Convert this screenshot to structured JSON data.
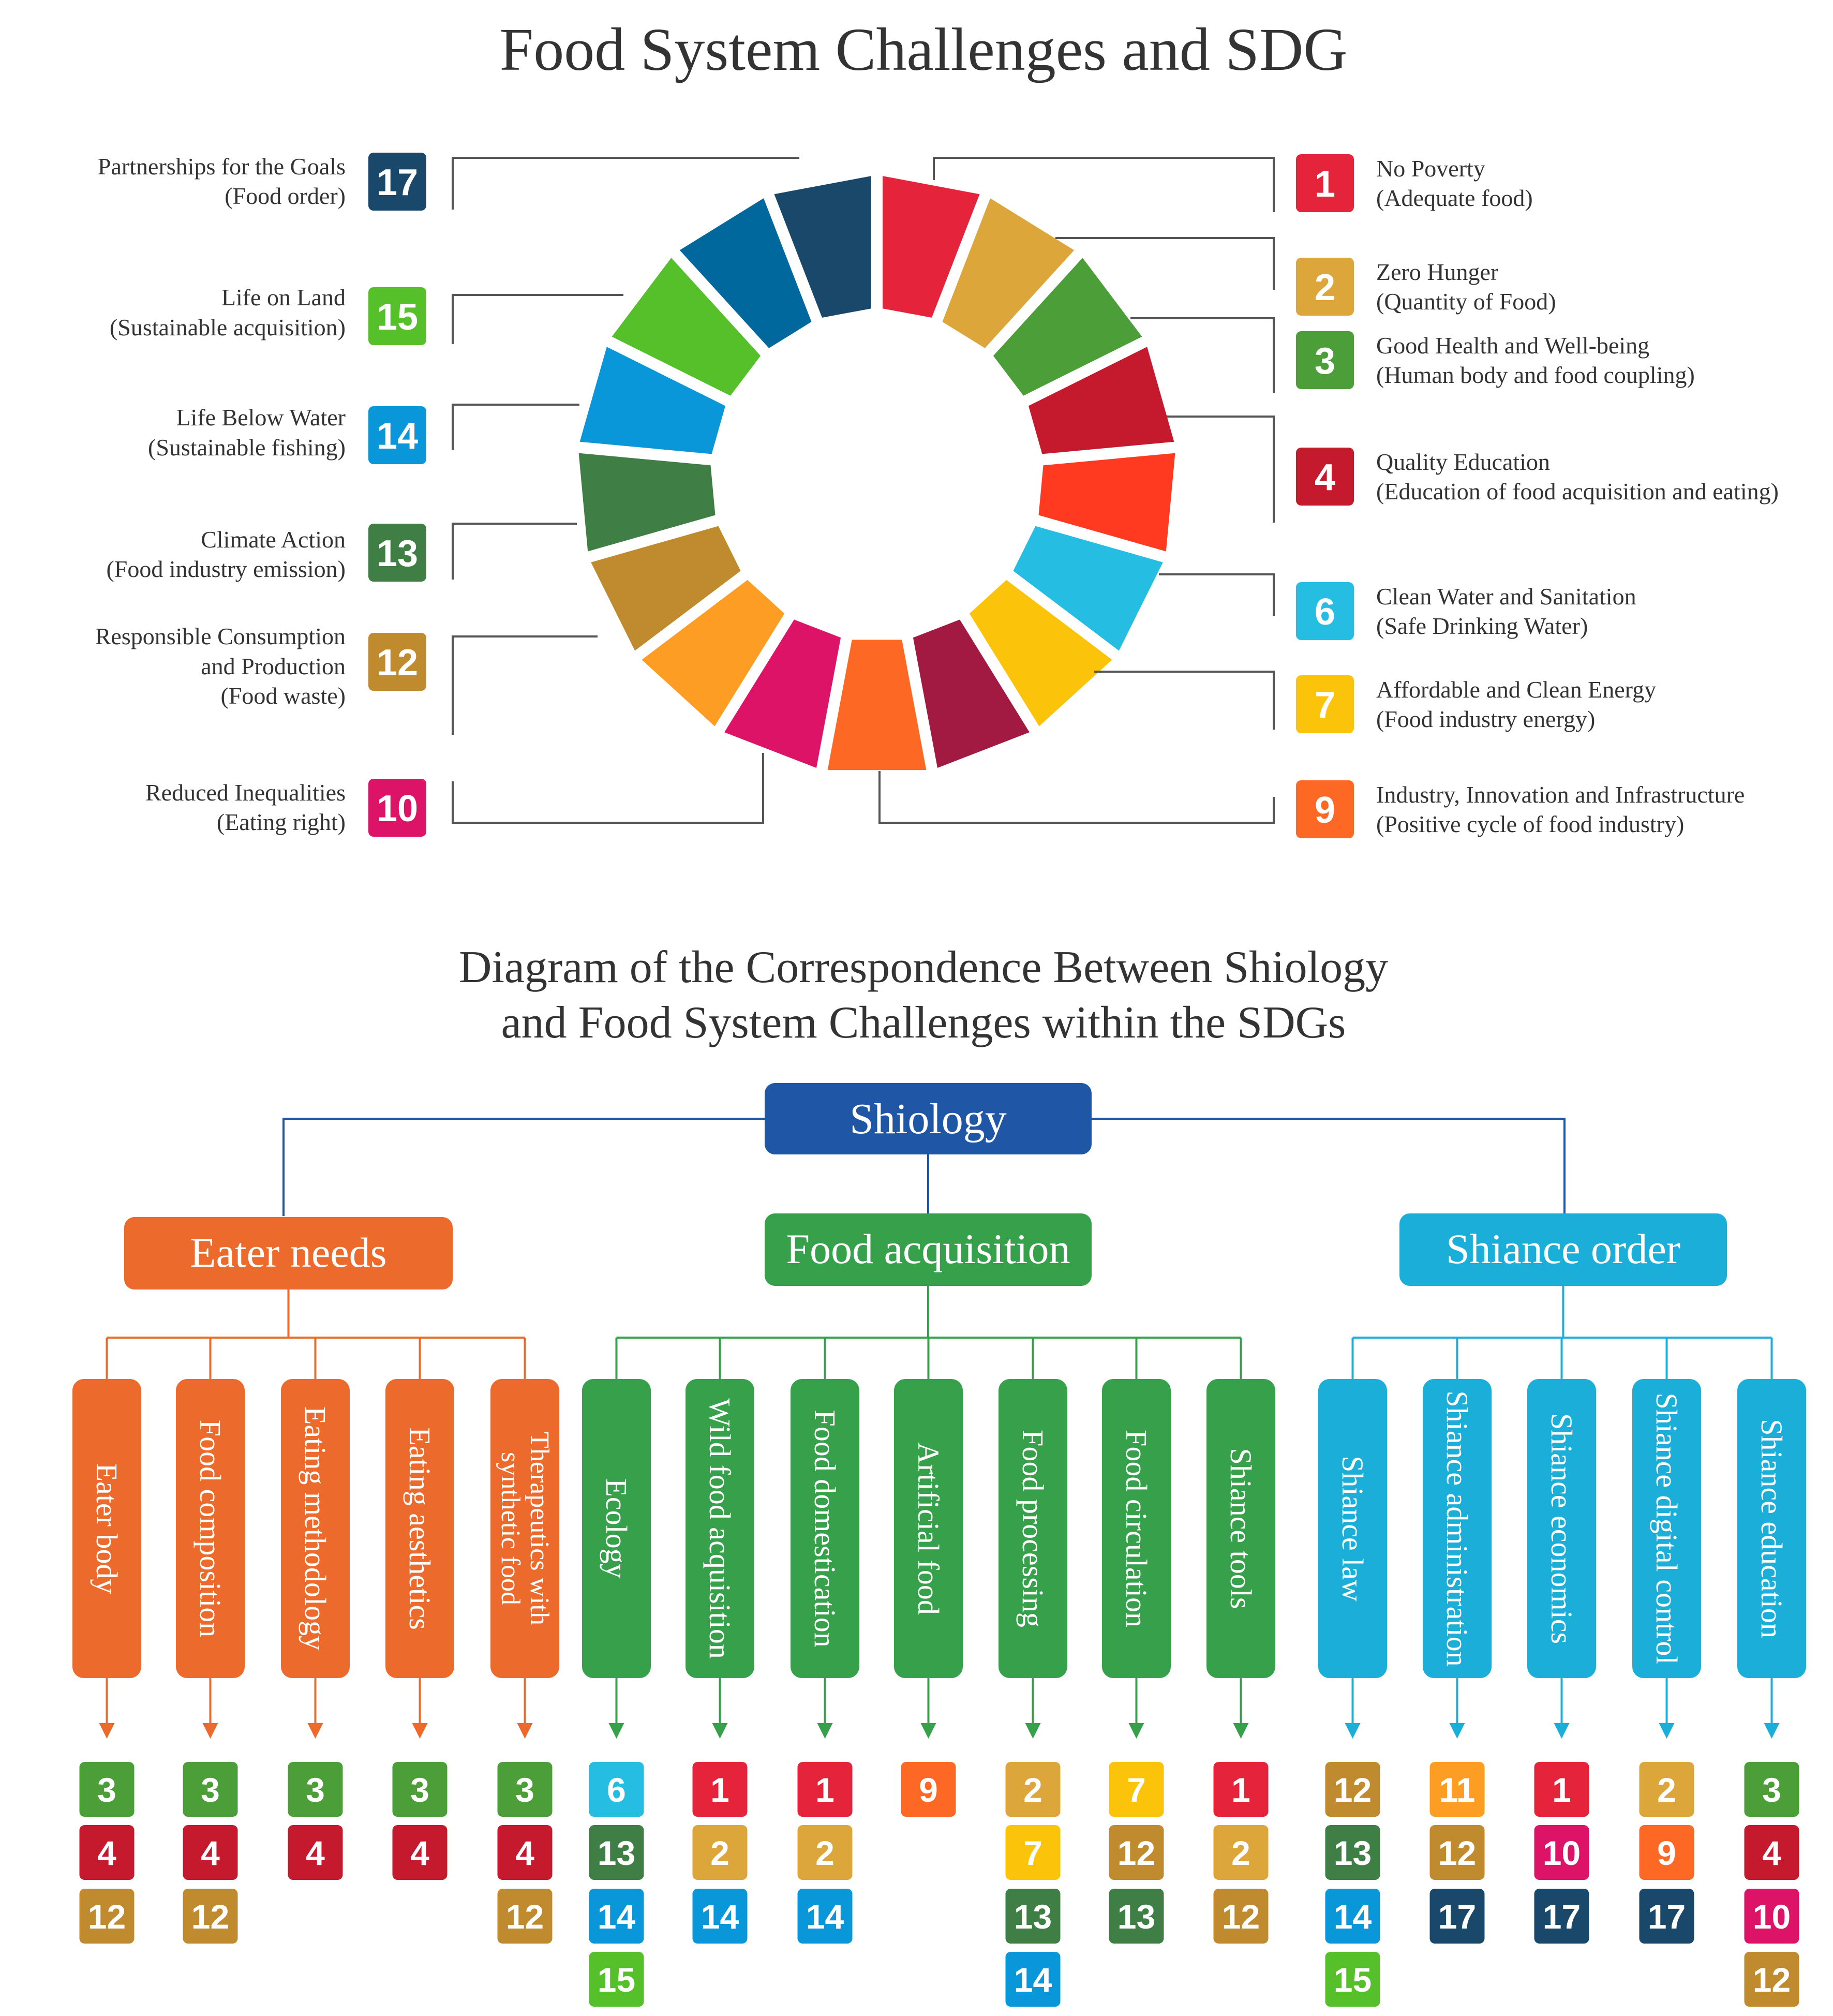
{
  "title1": "Food System Challenges and SDG",
  "title2_line1": "Diagram of the Correspondence Between Shiology",
  "title2_line2": "and Food System Challenges within the SDGs",
  "sdg_colors": {
    "1": "#e5243b",
    "2": "#dda63a",
    "3": "#4c9f38",
    "4": "#c5192d",
    "5": "#ff3a21",
    "6": "#26bde2",
    "7": "#fcc30b",
    "8": "#a21942",
    "9": "#fd6925",
    "10": "#dd1367",
    "11": "#fd9d24",
    "12": "#bf8b2e",
    "13": "#3f7e44",
    "14": "#0a97d9",
    "15": "#56c02b",
    "16": "#00689d",
    "17": "#19486a"
  },
  "wheel_colors": [
    "#e5243b",
    "#dda63a",
    "#4c9f38",
    "#c5192d",
    "#ff3a21",
    "#26bde2",
    "#fcc30b",
    "#a21942",
    "#fd6925",
    "#dd1367",
    "#fd9d24",
    "#bf8b2e",
    "#3f7e44",
    "#0a97d9",
    "#56c02b",
    "#00689d",
    "#19486a"
  ],
  "goals_right": [
    {
      "num": "1",
      "title": "No Poverty",
      "sub": "(Adequate food)"
    },
    {
      "num": "2",
      "title": "Zero Hunger",
      "sub": "(Quantity of Food)"
    },
    {
      "num": "3",
      "title": "Good Health and Well-being",
      "sub": "(Human body and food coupling)"
    },
    {
      "num": "4",
      "title": "Quality Education",
      "sub": "(Education of food acquisition and eating)"
    },
    {
      "num": "6",
      "title": "Clean Water and Sanitation",
      "sub": "(Safe Drinking Water)"
    },
    {
      "num": "7",
      "title": "Affordable and Clean Energy",
      "sub": "(Food industry energy)"
    },
    {
      "num": "9",
      "title": "Industry, Innovation and Infrastructure",
      "sub": "(Positive cycle of food industry)"
    }
  ],
  "goals_left": [
    {
      "num": "17",
      "lines": [
        "Partnerships for the Goals",
        "(Food order)"
      ]
    },
    {
      "num": "15",
      "lines": [
        "Life on Land",
        "(Sustainable acquisition)"
      ]
    },
    {
      "num": "14",
      "lines": [
        "Life Below Water",
        "(Sustainable fishing)"
      ]
    },
    {
      "num": "13",
      "lines": [
        "Climate Action",
        "(Food industry emission)"
      ]
    },
    {
      "num": "12",
      "lines": [
        "Responsible Consumption",
        "and Production",
        "(Food waste)"
      ]
    },
    {
      "num": "10",
      "lines": [
        "Reduced Inequalities",
        "(Eating right)"
      ]
    }
  ],
  "tree": {
    "root": "Shiology",
    "root_color": "#1f57a6",
    "groups": [
      {
        "label": "Eater needs",
        "color": "#ec6a2b",
        "items": [
          {
            "lines": [
              "Eater body"
            ],
            "sdgs": [
              "3",
              "4",
              "12"
            ]
          },
          {
            "lines": [
              "Food composition"
            ],
            "sdgs": [
              "3",
              "4",
              "12"
            ]
          },
          {
            "lines": [
              "Eating methodology"
            ],
            "sdgs": [
              "3",
              "4"
            ]
          },
          {
            "lines": [
              "Eating aesthetics"
            ],
            "sdgs": [
              "3",
              "4"
            ]
          },
          {
            "lines": [
              "Therapeutics with",
              "synthetic food"
            ],
            "sdgs": [
              "3",
              "4",
              "12"
            ]
          }
        ]
      },
      {
        "label": "Food acquisition",
        "color": "#37a04a",
        "items": [
          {
            "lines": [
              "Ecology"
            ],
            "sdgs": [
              "6",
              "13",
              "14",
              "15"
            ]
          },
          {
            "lines": [
              "Wild food acquisition"
            ],
            "sdgs": [
              "1",
              "2",
              "14"
            ]
          },
          {
            "lines": [
              "Food  domestication"
            ],
            "sdgs": [
              "1",
              "2",
              "14"
            ]
          },
          {
            "lines": [
              "Artificial food"
            ],
            "sdgs": [
              "9"
            ]
          },
          {
            "lines": [
              "Food processing"
            ],
            "sdgs": [
              "2",
              "7",
              "13",
              "14"
            ]
          },
          {
            "lines": [
              "Food circulation"
            ],
            "sdgs": [
              "7",
              "12",
              "13"
            ]
          },
          {
            "lines": [
              "Shiance tools"
            ],
            "sdgs": [
              "1",
              "2",
              "12"
            ]
          }
        ]
      },
      {
        "label": "Shiance order",
        "color": "#1aaed8",
        "items": [
          {
            "lines": [
              "Shiance law"
            ],
            "sdgs": [
              "12",
              "13",
              "14",
              "15"
            ]
          },
          {
            "lines": [
              "Shiance administration"
            ],
            "sdgs": [
              "11",
              "12",
              "17"
            ]
          },
          {
            "lines": [
              "Shiance economics"
            ],
            "sdgs": [
              "1",
              "10",
              "17"
            ]
          },
          {
            "lines": [
              "Shiance digital control"
            ],
            "sdgs": [
              "2",
              "9",
              "17"
            ]
          },
          {
            "lines": [
              "Shiance education"
            ],
            "sdgs": [
              "3",
              "4",
              "10",
              "12"
            ]
          }
        ]
      }
    ]
  }
}
